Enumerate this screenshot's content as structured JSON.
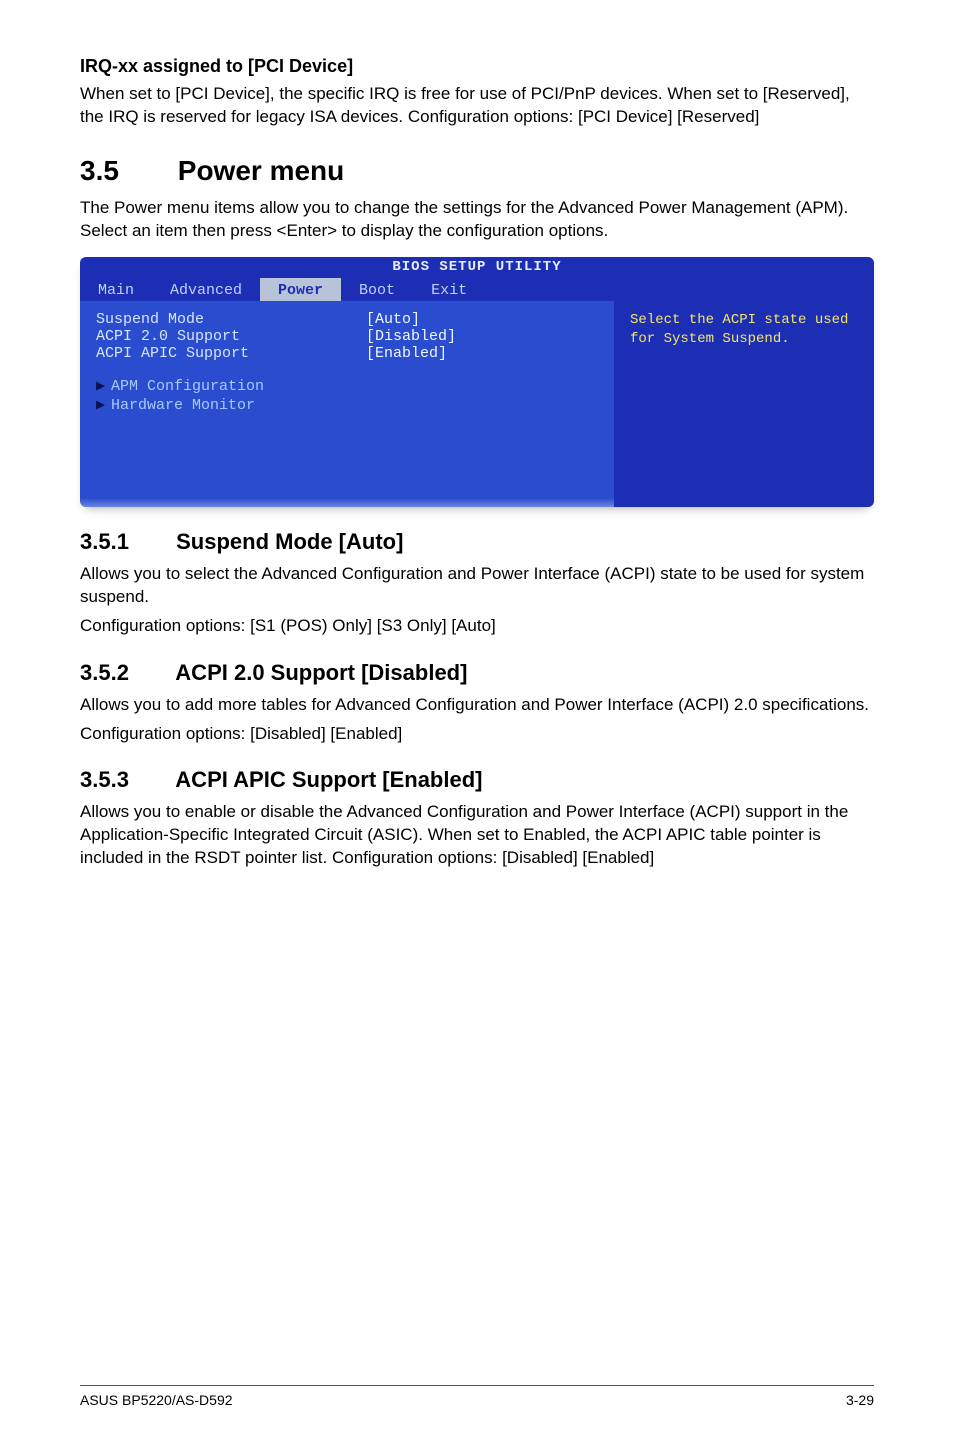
{
  "irq": {
    "heading": "IRQ-xx assigned to [PCI Device]",
    "p1": "When set to [PCI Device], the specific IRQ is free for use of PCI/PnP devices. When set to [Reserved], the IRQ is reserved for legacy ISA devices. Configuration options: [PCI Device] [Reserved]"
  },
  "chapter": {
    "num": "3.5",
    "title": "Power menu",
    "intro": "The Power menu items allow you to change the settings for the Advanced Power Management (APM). Select an item then press <Enter> to display the configuration options."
  },
  "bios": {
    "title": "BIOS SETUP UTILITY",
    "tabs": {
      "main": "Main",
      "advanced": "Advanced",
      "power": "Power",
      "boot": "Boot",
      "exit": "Exit"
    },
    "left": {
      "suspend_mode_label": "Suspend Mode",
      "suspend_mode_value": "[Auto]",
      "acpi20_label": "ACPI 2.0 Support",
      "acpi20_value": "[Disabled]",
      "apic_label": "ACPI APIC Support",
      "apic_value": "[Enabled]",
      "apm_conf": "APM Configuration",
      "hw_mon": "Hardware Monitor"
    },
    "right_help": "Select the ACPI state used for System Suspend."
  },
  "s351": {
    "num": "3.5.1",
    "title": "Suspend Mode [Auto]",
    "p1": "Allows you to select the Advanced Configuration and Power Interface (ACPI) state to be used for system suspend.",
    "p2": "Configuration options: [S1 (POS) Only] [S3 Only] [Auto]"
  },
  "s352": {
    "num": "3.5.2",
    "title": "ACPI 2.0 Support [Disabled]",
    "p1": "Allows you to add more tables for Advanced Configuration and Power Interface (ACPI) 2.0 specifications.",
    "p2": "Configuration options: [Disabled] [Enabled]"
  },
  "s353": {
    "num": "3.5.3",
    "title": "ACPI APIC Support [Enabled]",
    "p1": "Allows you to enable or disable the Advanced Configuration and Power Interface (ACPI) support in the Application-Specific Integrated Circuit (ASIC). When set to Enabled, the ACPI APIC table pointer is included in the RSDT pointer list. Configuration options: [Disabled] [Enabled]"
  },
  "footer": {
    "left": "ASUS BP5220/AS-D592",
    "right": "3-29"
  }
}
